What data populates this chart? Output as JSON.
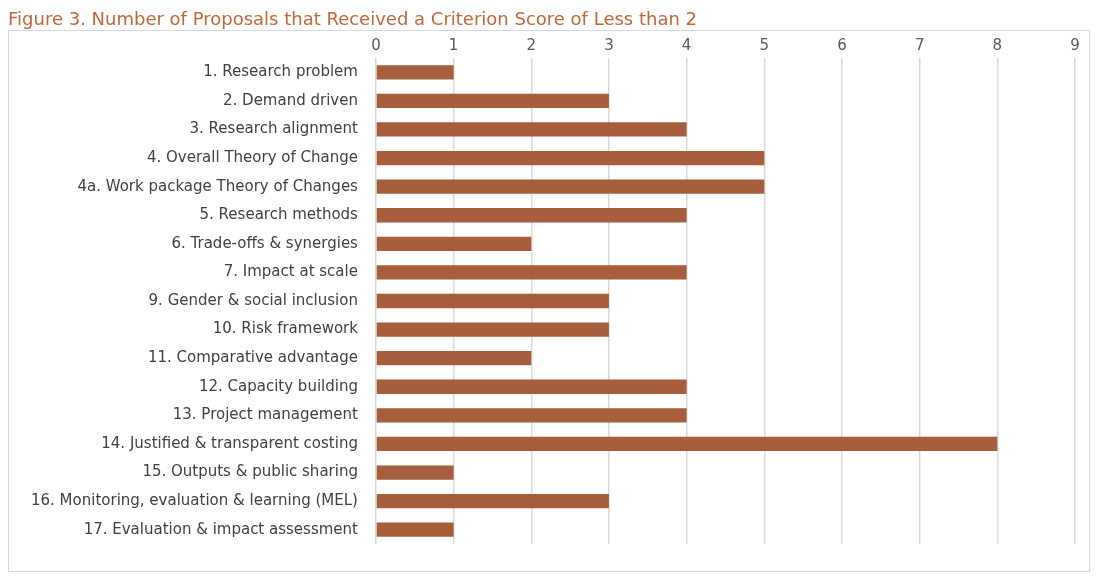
{
  "chart_data": {
    "type": "bar",
    "orientation": "horizontal",
    "title": "Figure 3. Number of Proposals that Received a Criterion Score of Less than 2",
    "categories": [
      "1. Research problem",
      "2. Demand driven",
      "3. Research alignment",
      "4. Overall Theory of Change",
      "4a. Work package Theory of Changes",
      "5. Research methods",
      "6. Trade-offs & synergies",
      "7. Impact at scale",
      "9. Gender & social inclusion",
      "10. Risk framework",
      "11. Comparative advantage",
      "12. Capacity building",
      "13. Project management",
      "14. Justified & transparent costing",
      "15. Outputs & public sharing",
      "16. Monitoring, evaluation & learning (MEL)",
      "17. Evaluation & impact assessment"
    ],
    "values": [
      1,
      3,
      4,
      5,
      5,
      4,
      2,
      4,
      3,
      3,
      2,
      4,
      4,
      8,
      1,
      3,
      1
    ],
    "color": "#a65e3c",
    "xlim": [
      0,
      9
    ],
    "xticks": [
      0,
      1,
      2,
      3,
      4,
      5,
      6,
      7,
      8,
      9
    ],
    "grid": "x",
    "legend": false
  }
}
